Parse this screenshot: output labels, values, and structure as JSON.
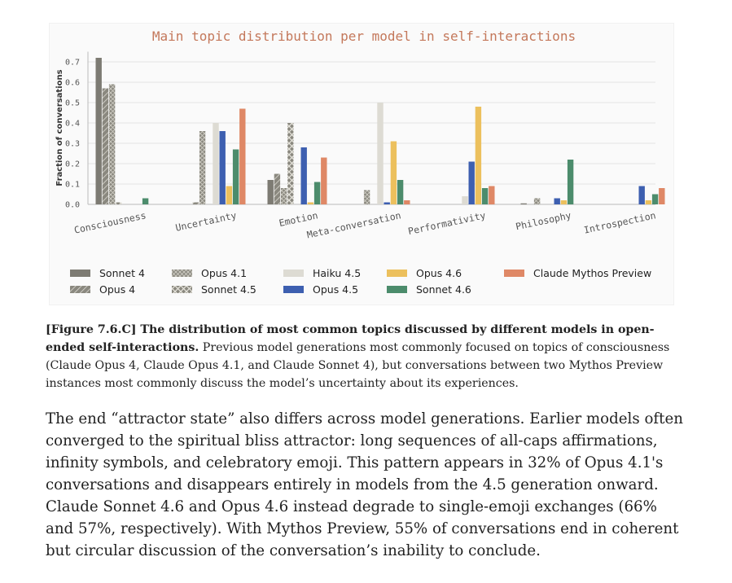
{
  "figure": {
    "title": "Main topic distribution per model in self-interactions"
  },
  "chart_data": {
    "type": "bar",
    "title": "Main topic distribution per model in self-interactions",
    "xlabel": "",
    "ylabel": "Fraction of conversations",
    "ylim": [
      0,
      0.75
    ],
    "yticks": [
      "0.0",
      "0.1",
      "0.2",
      "0.3",
      "0.4",
      "0.5",
      "0.6",
      "0.7"
    ],
    "grid": true,
    "legend_position": "bottom",
    "categories": [
      "Consciousness",
      "Uncertainty",
      "Emotion",
      "Meta-conversation",
      "Performativity",
      "Philosophy",
      "Introspection"
    ],
    "series": [
      {
        "name": "Sonnet 4",
        "color": "#7d7b73",
        "pattern": "solid",
        "values": [
          0.72,
          0.0,
          0.12,
          0.0,
          0.0,
          0.005,
          0.0
        ]
      },
      {
        "name": "Opus 4",
        "color": "#8a887f",
        "pattern": "diag",
        "values": [
          0.57,
          0.01,
          0.15,
          0.0,
          0.0,
          0.0,
          0.0
        ]
      },
      {
        "name": "Opus 4.1",
        "color": "#8a887f",
        "pattern": "cross",
        "values": [
          0.59,
          0.36,
          0.08,
          0.07,
          0.0,
          0.03,
          0.0
        ]
      },
      {
        "name": "Sonnet 4.5",
        "color": "#8a887f",
        "pattern": "xhatch",
        "values": [
          0.01,
          0.0,
          0.4,
          0.0,
          0.0,
          0.0,
          0.0
        ]
      },
      {
        "name": "Haiku 4.5",
        "color": "#dddbd3",
        "pattern": "solid",
        "values": [
          0.0,
          0.4,
          0.0,
          0.5,
          0.04,
          0.0,
          0.0
        ]
      },
      {
        "name": "Opus 4.5",
        "color": "#3d5fb0",
        "pattern": "solid",
        "values": [
          0.0,
          0.36,
          0.28,
          0.01,
          0.21,
          0.03,
          0.09
        ]
      },
      {
        "name": "Opus 4.6",
        "color": "#ecc05d",
        "pattern": "solid",
        "values": [
          0.0,
          0.09,
          0.01,
          0.31,
          0.48,
          0.02,
          0.02
        ]
      },
      {
        "name": "Sonnet 4.6",
        "color": "#4c8c6c",
        "pattern": "solid",
        "values": [
          0.03,
          0.27,
          0.11,
          0.12,
          0.08,
          0.22,
          0.05
        ]
      },
      {
        "name": "Claude Mythos Preview",
        "color": "#df8866",
        "pattern": "solid",
        "values": [
          0.0,
          0.47,
          0.23,
          0.02,
          0.09,
          0.0,
          0.08
        ]
      }
    ]
  },
  "caption": {
    "bold": "[Figure 7.6.C] The distribution of most common topics discussed by different models in open-ended self-interactions.",
    "text": " Previous model generations most commonly focused on topics of consciousness (Claude Opus 4, Claude Opus 4.1, and Claude Sonnet 4), but conversations between two Mythos Preview instances most commonly discuss the model’s uncertainty about its experiences."
  },
  "body": {
    "paragraph": "The end “attractor state” also differs across model generations. Earlier models often converged to the spiritual bliss attractor: long sequences of all-caps affirmations, infinity symbols, and celebratory emoji. This pattern appears in 32% of Opus 4.1's conversations and disappears entirely in models from the 4.5 generation onward. Claude Sonnet 4.6 and Opus 4.6 instead degrade to single-emoji exchanges (66% and 57%, respectively). With Mythos Preview, 55% of conversations end in coherent but circular discussion of the conversation’s inability to conclude."
  }
}
